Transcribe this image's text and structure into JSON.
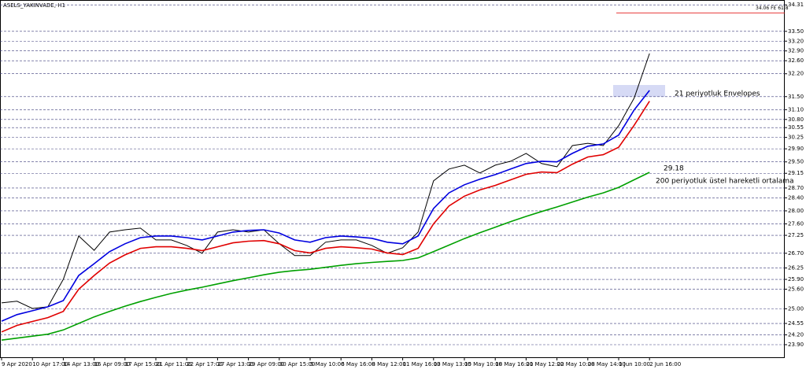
{
  "chart_data": {
    "type": "line",
    "title": "ASELS_YAKINVADE, H1",
    "categories": [
      "9 Apr 2020",
      null,
      "10 Apr 17:00",
      null,
      "14 Apr 13:00",
      null,
      "16 Apr 09:00",
      null,
      "17 Apr 15:00",
      null,
      "21 Apr 11:00",
      null,
      "22 Apr 17:00",
      null,
      "27 Apr 13:00",
      null,
      "29 Apr 09:00",
      null,
      "30 Apr 15:00",
      null,
      "5 May 10:00",
      null,
      "6 May 16:00",
      null,
      "8 May 12:00",
      null,
      "11 May 16:00",
      null,
      "13 May 13:00",
      null,
      "15 May 10:00",
      null,
      "18 May 16:00",
      null,
      "21 May 12:00",
      null,
      "22 May 10:00",
      null,
      "28 May 14:00",
      null,
      "1 Jun 10:00",
      null,
      "2 Jun 16:00"
    ],
    "series": [
      {
        "color": "#000000",
        "values": [
          25.18,
          25.23,
          25.01,
          25.06,
          25.9,
          27.23,
          26.79,
          27.35,
          27.42,
          27.47,
          27.11,
          27.11,
          26.94,
          26.7,
          27.35,
          27.42,
          27.35,
          27.42,
          26.99,
          26.63,
          26.63,
          27.04,
          27.11,
          27.11,
          26.94,
          26.7,
          26.87,
          27.35,
          28.92,
          29.28,
          29.4,
          29.16,
          29.4,
          29.52,
          29.76,
          29.45,
          29.35,
          30.0,
          30.07,
          30.0,
          30.61,
          31.45,
          32.82
        ]
      },
      {
        "color": "#0000e0",
        "values": [
          24.62,
          24.82,
          24.94,
          25.06,
          25.25,
          26.02,
          26.38,
          26.75,
          26.99,
          27.18,
          27.23,
          27.23,
          27.18,
          27.11,
          27.23,
          27.35,
          27.4,
          27.42,
          27.32,
          27.11,
          27.04,
          27.18,
          27.23,
          27.2,
          27.16,
          27.04,
          26.99,
          27.23,
          28.07,
          28.55,
          28.8,
          28.97,
          29.11,
          29.28,
          29.45,
          29.52,
          29.5,
          29.76,
          29.98,
          30.05,
          30.32,
          31.09,
          31.69
        ]
      },
      {
        "color": "#e00000",
        "values": [
          24.29,
          24.49,
          24.61,
          24.73,
          24.92,
          25.6,
          26.02,
          26.4,
          26.65,
          26.85,
          26.9,
          26.9,
          26.85,
          26.78,
          26.9,
          27.02,
          27.07,
          27.09,
          26.99,
          26.78,
          26.71,
          26.85,
          26.9,
          26.87,
          26.83,
          26.71,
          26.66,
          26.85,
          27.6,
          28.15,
          28.45,
          28.64,
          28.78,
          28.95,
          29.12,
          29.19,
          29.17,
          29.43,
          29.65,
          29.72,
          29.95,
          30.62,
          31.36
        ]
      },
      {
        "color": "#00a000",
        "values": [
          24.04,
          24.1,
          24.16,
          24.22,
          24.35,
          24.55,
          24.75,
          24.92,
          25.08,
          25.22,
          25.35,
          25.47,
          25.57,
          25.66,
          25.76,
          25.86,
          25.95,
          26.04,
          26.12,
          26.17,
          26.21,
          26.27,
          26.33,
          26.38,
          26.42,
          26.45,
          26.48,
          26.56,
          26.75,
          26.95,
          27.15,
          27.33,
          27.5,
          27.67,
          27.83,
          27.98,
          28.12,
          28.27,
          28.42,
          28.55,
          28.72,
          28.95,
          29.18
        ]
      }
    ],
    "ylim": [
      23.49,
      34.46
    ],
    "yticks": [
      34.31,
      {
        "value": 33.5,
        "label": "33.50"
      },
      {
        "value": 33.2,
        "label": "33.20"
      },
      {
        "value": 32.9,
        "label": "32.90"
      },
      {
        "value": 32.6,
        "label": "32.60"
      },
      {
        "value": 32.2,
        "label": "32.20"
      },
      {
        "value": 31.5,
        "label": "31.50"
      },
      {
        "value": 31.1,
        "label": "31.10"
      },
      {
        "value": 30.8,
        "label": "30.80"
      },
      30.55,
      30.25,
      {
        "value": 29.9,
        "label": "29.90"
      },
      {
        "value": 29.5,
        "label": "29.50"
      },
      29.15,
      {
        "value": 28.7,
        "label": "28.70"
      },
      {
        "value": 28.4,
        "label": "28.40"
      },
      {
        "value": 28,
        "label": "28.00"
      },
      {
        "value": 27.6,
        "label": "27.60"
      },
      27.25,
      {
        "value": 26.7,
        "label": "26.70"
      },
      26.25,
      {
        "value": 25.9,
        "label": "25.90"
      },
      {
        "value": 25.6,
        "label": "25.60"
      },
      {
        "value": 25,
        "label": "25.00"
      },
      24.55,
      {
        "value": 24.2,
        "label": "24.20"
      },
      {
        "value": 23.9,
        "label": "23.90"
      }
    ],
    "grid": true,
    "annotations": [
      {
        "text": "34.06 FE 61.8",
        "value": 34.06,
        "color": "#e00000"
      },
      {
        "text": "21 periyotluk Envelopes",
        "color": "#2222cc"
      },
      {
        "text": "29.18",
        "color": "#00a000"
      },
      {
        "text": "200 periyotluk üstel hareketli ortalama",
        "color": "#00a000"
      }
    ]
  }
}
